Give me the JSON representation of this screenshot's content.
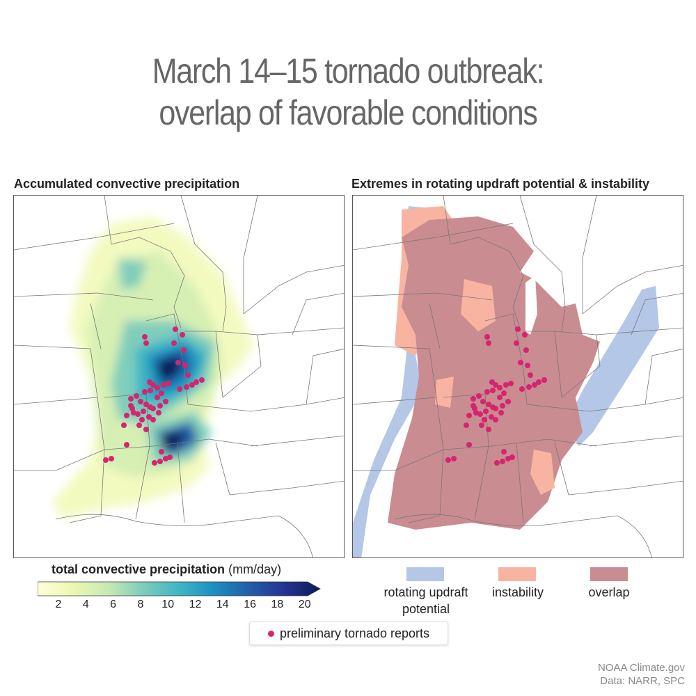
{
  "title": {
    "line1": "March 14–15 tornado outbreak:",
    "line2": "overlap of favorable conditions"
  },
  "left_panel": {
    "title": "Accumulated convective precipitation",
    "colorbar": {
      "title_bold": "total convective precipitation",
      "title_unit": "(mm/day)",
      "ticks": [
        "2",
        "4",
        "6",
        "8",
        "10",
        "12",
        "14",
        "16",
        "18",
        "20"
      ],
      "colors": [
        "#ffffd9",
        "#edf8b1",
        "#c7e9b4",
        "#7fcdbb",
        "#41b6c4",
        "#1d91c0",
        "#225ea8",
        "#253494",
        "#081d58"
      ]
    }
  },
  "right_panel": {
    "title": "Extremes in rotating updraft potential & instability",
    "legend": [
      {
        "label_line1": "rotating updraft",
        "label_line2": "potential",
        "color": "#b4c7e7"
      },
      {
        "label_line1": "instability",
        "label_line2": "",
        "color": "#f8b4a0"
      },
      {
        "label_line1": "overlap",
        "label_line2": "",
        "color": "#c98c91"
      }
    ]
  },
  "reports_legend": {
    "label": "preliminary tornado reports",
    "color": "#d6246f"
  },
  "credit": {
    "line1": "NOAA Climate.gov",
    "line2": "Data: NARR, SPC"
  }
}
